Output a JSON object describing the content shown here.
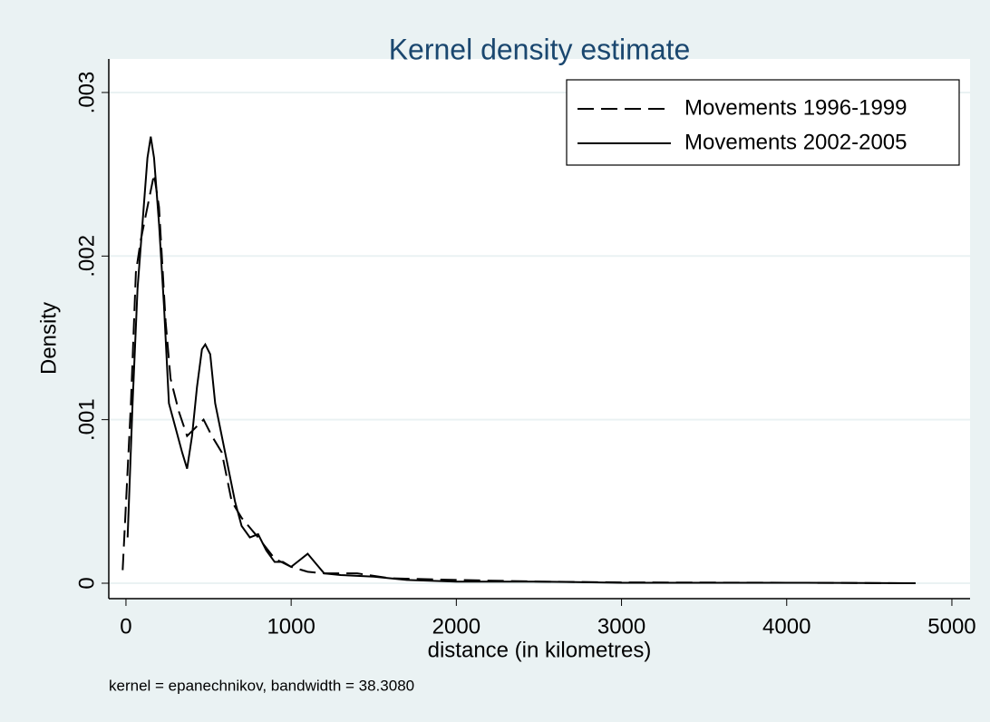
{
  "chart_data": {
    "type": "line",
    "title": "Kernel density estimate",
    "x_label": "distance (in kilometres)",
    "y_label": "Density",
    "note": "kernel = epanechnikov, bandwidth = 38.3080",
    "xlim": [
      -104,
      5110
    ],
    "ylim": [
      -9.43e-05,
      0.003205
    ],
    "xticks": [
      0,
      1000,
      2000,
      3000,
      4000,
      5000
    ],
    "yticks": [
      0,
      {
        "value": 0.001,
        "label": ".001"
      },
      {
        "value": 0.002,
        "label": ".002"
      },
      {
        "value": 0.003,
        "label": ".003"
      }
    ],
    "grid": true,
    "legend": "top-right",
    "series": [
      {
        "name": "Movements 1996-1999",
        "color": "#000000",
        "dash": "dashed",
        "x": [
          -20,
          30,
          60,
          90,
          150,
          170,
          200,
          240,
          270,
          320,
          370,
          420,
          470,
          520,
          580,
          640,
          700,
          800,
          900,
          1000,
          1100,
          1200,
          1400,
          1600,
          2000,
          2500,
          3000,
          4000,
          4780
        ],
        "values": [
          8e-05,
          0.0011,
          0.0019,
          0.0021,
          0.0024,
          0.0025,
          0.0023,
          0.0016,
          0.00125,
          0.00105,
          0.0009,
          0.00095,
          0.001,
          0.0009,
          0.0008,
          0.0005,
          0.0004,
          0.00028,
          0.00015,
          0.0001,
          7e-05,
          6e-05,
          6e-05,
          3e-05,
          2e-05,
          1e-05,
          5e-06,
          3e-06,
          0
        ]
      },
      {
        "name": "Movements 2002-2005",
        "color": "#000000",
        "dash": "solid",
        "x": [
          10,
          40,
          70,
          100,
          130,
          150,
          170,
          200,
          230,
          260,
          300,
          340,
          370,
          400,
          430,
          460,
          480,
          510,
          540,
          580,
          620,
          660,
          700,
          750,
          800,
          850,
          900,
          950,
          1000,
          1050,
          1100,
          1150,
          1200,
          1300,
          1500,
          1700,
          2000,
          2500,
          3000,
          4000,
          4780
        ],
        "values": [
          0.00028,
          0.0011,
          0.0018,
          0.0022,
          0.0026,
          0.00273,
          0.0026,
          0.0022,
          0.0017,
          0.0011,
          0.00095,
          0.0008,
          0.0007,
          0.0009,
          0.0012,
          0.00143,
          0.00146,
          0.0014,
          0.0011,
          0.0009,
          0.0007,
          0.0005,
          0.00035,
          0.00028,
          0.0003,
          0.0002,
          0.00013,
          0.00013,
          0.0001,
          0.00014,
          0.00018,
          0.00012,
          6e-05,
          5e-05,
          4e-05,
          2e-05,
          1e-05,
          1e-05,
          3e-06,
          3e-06,
          0
        ]
      }
    ]
  }
}
